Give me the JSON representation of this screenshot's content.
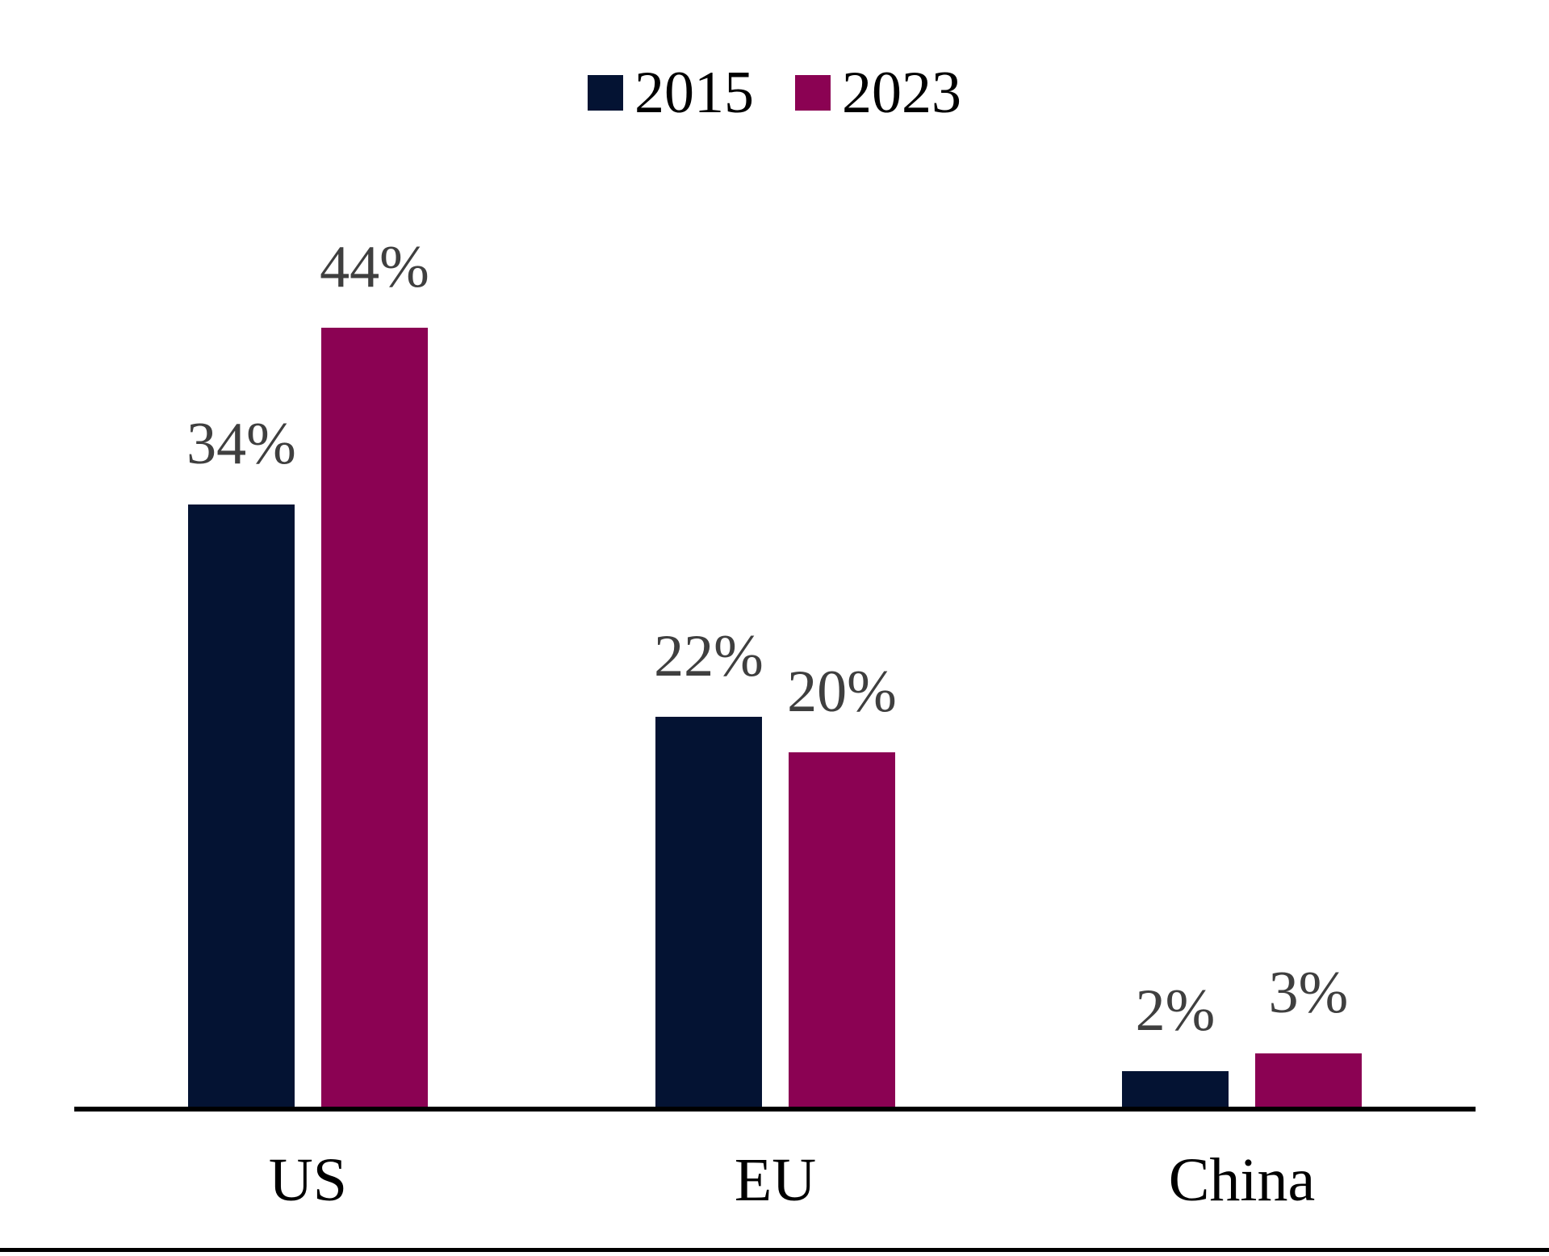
{
  "chart_data": {
    "type": "bar",
    "title": "",
    "xlabel": "",
    "ylabel": "",
    "categories": [
      "US",
      "EU",
      "China"
    ],
    "series": [
      {
        "name": "2015",
        "color": "#041333",
        "values": [
          34,
          22,
          2
        ],
        "labels": [
          "34%",
          "22%",
          "2%"
        ]
      },
      {
        "name": "2023",
        "color": "#8B0253",
        "values": [
          44,
          20,
          3
        ],
        "labels": [
          "44%",
          "20%",
          "3%"
        ]
      }
    ],
    "value_suffix": "%",
    "ylim": [
      0,
      58
    ],
    "grid": false,
    "y_axis_visible": false,
    "x_axis_line_visible": true,
    "legend_position": "top-center",
    "colors": {
      "background": "#FFFFFF",
      "value_label": "#3F3F3F",
      "category_label": "#000000",
      "axis_line": "#000000",
      "legend_text": "#000000",
      "bottom_rule": "#000000"
    }
  }
}
